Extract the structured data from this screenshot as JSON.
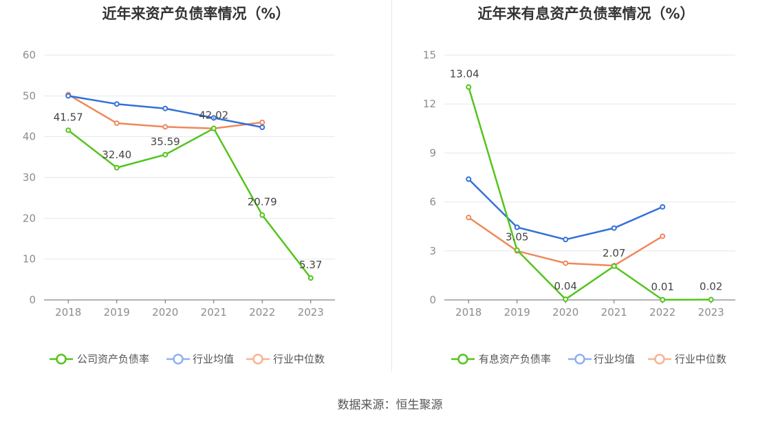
{
  "charts": [
    {
      "title": "近年来资产负债率情况（%）",
      "chart_data": {
        "type": "line",
        "title": "近年来资产负债率情况（%）",
        "categories": [
          "2018",
          "2019",
          "2020",
          "2021",
          "2022",
          "2023"
        ],
        "ylim": [
          0,
          60
        ],
        "yticks": [
          0,
          10,
          20,
          30,
          40,
          50,
          60
        ],
        "grid": true,
        "legend_position": "bottom",
        "series": [
          {
            "name": "公司资产负债率",
            "color": "#52c41a",
            "values": [
              41.57,
              32.4,
              35.59,
              42.02,
              20.79,
              5.37
            ],
            "labels": [
              "41.57",
              "32.40",
              "35.59",
              "42.02",
              "20.79",
              "5.37"
            ]
          },
          {
            "name": "行业均值",
            "color": "#3370d8",
            "values": [
              50.0,
              48.0,
              46.9,
              44.6,
              42.3,
              null
            ]
          },
          {
            "name": "行业中位数",
            "color": "#f0875a",
            "values": [
              50.3,
              43.3,
              42.4,
              42.0,
              43.5,
              null
            ]
          }
        ]
      }
    },
    {
      "title": "近年来有息资产负债率情况（%）",
      "chart_data": {
        "type": "line",
        "title": "近年来有息资产负债率情况（%）",
        "categories": [
          "2018",
          "2019",
          "2020",
          "2021",
          "2022",
          "2023"
        ],
        "ylim": [
          0,
          15
        ],
        "yticks": [
          0,
          3,
          6,
          9,
          12,
          15
        ],
        "grid": true,
        "legend_position": "bottom",
        "series": [
          {
            "name": "有息资产负债率",
            "color": "#52c41a",
            "values": [
              13.04,
              3.05,
              0.04,
              2.07,
              0.01,
              0.02
            ],
            "labels": [
              "13.04",
              "3.05",
              "0.04",
              "2.07",
              "0.01",
              "0.02"
            ]
          },
          {
            "name": "行业均值",
            "color": "#3370d8",
            "values": [
              7.4,
              4.45,
              3.7,
              4.4,
              5.7,
              null
            ]
          },
          {
            "name": "行业中位数",
            "color": "#f0875a",
            "values": [
              5.05,
              3.0,
              2.25,
              2.1,
              3.9,
              null
            ]
          }
        ]
      }
    }
  ],
  "source": "数据来源：恒生聚源"
}
